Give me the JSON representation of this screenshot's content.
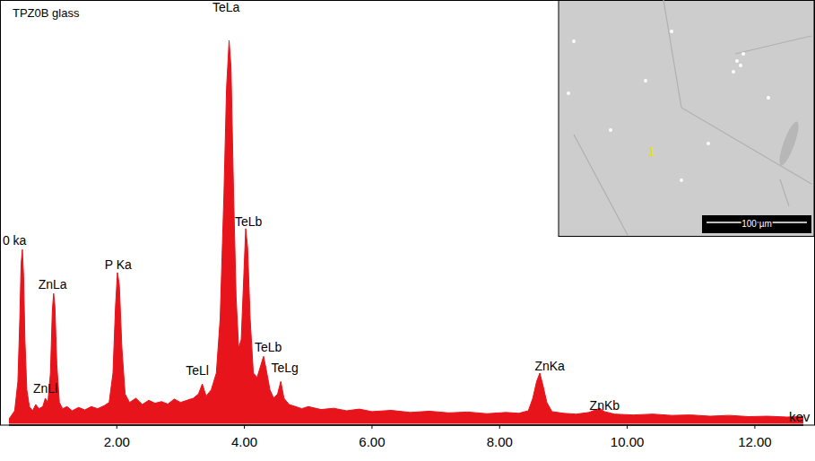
{
  "chart_data": {
    "type": "area",
    "title": "TPZ0B glass",
    "x_label": "kev",
    "color": "#e8141c",
    "x": [
      0.31,
      0.4,
      0.45,
      0.48,
      0.5,
      0.52,
      0.54,
      0.56,
      0.59,
      0.63,
      0.68,
      0.73,
      0.78,
      0.84,
      0.88,
      0.92,
      0.96,
      0.99,
      1.01,
      1.03,
      1.06,
      1.1,
      1.15,
      1.22,
      1.3,
      1.4,
      1.5,
      1.6,
      1.7,
      1.8,
      1.88,
      1.94,
      1.98,
      2.01,
      2.04,
      2.08,
      2.13,
      2.2,
      2.3,
      2.4,
      2.5,
      2.6,
      2.7,
      2.8,
      2.9,
      3.0,
      3.1,
      3.2,
      3.28,
      3.34,
      3.4,
      3.48,
      3.56,
      3.62,
      3.68,
      3.72,
      3.76,
      3.79,
      3.83,
      3.87,
      3.91,
      3.95,
      3.99,
      4.02,
      4.05,
      4.09,
      4.14,
      4.2,
      4.26,
      4.3,
      4.34,
      4.4,
      4.46,
      4.52,
      4.57,
      4.62,
      4.7,
      4.8,
      4.9,
      5.0,
      5.2,
      5.4,
      5.6,
      5.8,
      6.0,
      6.3,
      6.6,
      6.9,
      7.2,
      7.5,
      7.8,
      8.1,
      8.3,
      8.45,
      8.52,
      8.58,
      8.63,
      8.68,
      8.74,
      8.82,
      9.0,
      9.2,
      9.4,
      9.5,
      9.57,
      9.64,
      9.8,
      10.1,
      10.4,
      10.7,
      11.0,
      11.3,
      11.6,
      11.9,
      12.2,
      12.5,
      12.76
    ],
    "values": [
      1,
      3,
      10,
      25,
      38,
      41.5,
      35,
      20,
      8,
      4,
      3,
      4.5,
      3.5,
      4,
      6,
      5,
      12,
      27,
      31,
      28,
      14,
      5,
      3.5,
      4,
      3,
      3.8,
      3.2,
      4,
      3.5,
      4.2,
      5,
      12,
      28,
      36,
      33,
      18,
      7,
      5,
      6,
      4.5,
      5.5,
      4.8,
      5.2,
      4.6,
      5.8,
      5,
      5.5,
      6,
      7,
      9.4,
      6.5,
      8,
      12,
      25,
      55,
      80,
      91.4,
      85,
      55,
      30,
      18,
      20,
      35,
      46.5,
      42,
      25,
      12,
      11,
      14,
      16,
      13,
      8,
      6,
      7,
      10,
      6,
      4.5,
      4,
      3.5,
      4,
      3.3,
      3.6,
      3,
      3.4,
      2.8,
      3.1,
      2.6,
      2.9,
      2.5,
      2.7,
      2.3,
      2.6,
      2.4,
      3,
      6,
      10,
      12,
      9,
      5,
      2.8,
      2.4,
      2.2,
      2.6,
      3.2,
      3.6,
      2.8,
      2.2,
      2,
      2.2,
      1.9,
      2,
      1.7,
      1.9,
      1.6,
      1.7,
      1.5,
      1.6
    ],
    "xlim": [
      0.31,
      12.76
    ],
    "ylim": [
      0,
      100
    ],
    "xticks": [
      {
        "value": 2,
        "label": "2.00"
      },
      {
        "value": 4,
        "label": "4.00"
      },
      {
        "value": 6,
        "label": "6.00"
      },
      {
        "value": 8,
        "label": "8.00"
      },
      {
        "value": 10,
        "label": "10.00"
      },
      {
        "value": 12,
        "label": "12.00"
      }
    ],
    "tick_labels": "x",
    "grid": false,
    "annotations": [
      {
        "text": "0 ka",
        "x": 0.21,
        "y": 42.6
      },
      {
        "text": "ZnLa",
        "x": 0.77,
        "y": 32.1
      },
      {
        "text": "ZnLl",
        "x": 0.69,
        "y": 7.3
      },
      {
        "text": "P Ka",
        "x": 1.81,
        "y": 36.8
      },
      {
        "text": "TeLl",
        "x": 3.08,
        "y": 11.6
      },
      {
        "text": "TeLa",
        "x": 3.5,
        "y": 98.3
      },
      {
        "text": "TeLb",
        "x": 3.85,
        "y": 47.1
      },
      {
        "text": "TeLb",
        "x": 4.16,
        "y": 17.1
      },
      {
        "text": "TeLg",
        "x": 4.42,
        "y": 12.2
      },
      {
        "text": "ZnKa",
        "x": 8.55,
        "y": 12.6
      },
      {
        "text": "ZnKb",
        "x": 9.41,
        "y": 3.2
      }
    ]
  },
  "inset": {
    "point_label": "1",
    "scale_bar": "100 µm"
  }
}
